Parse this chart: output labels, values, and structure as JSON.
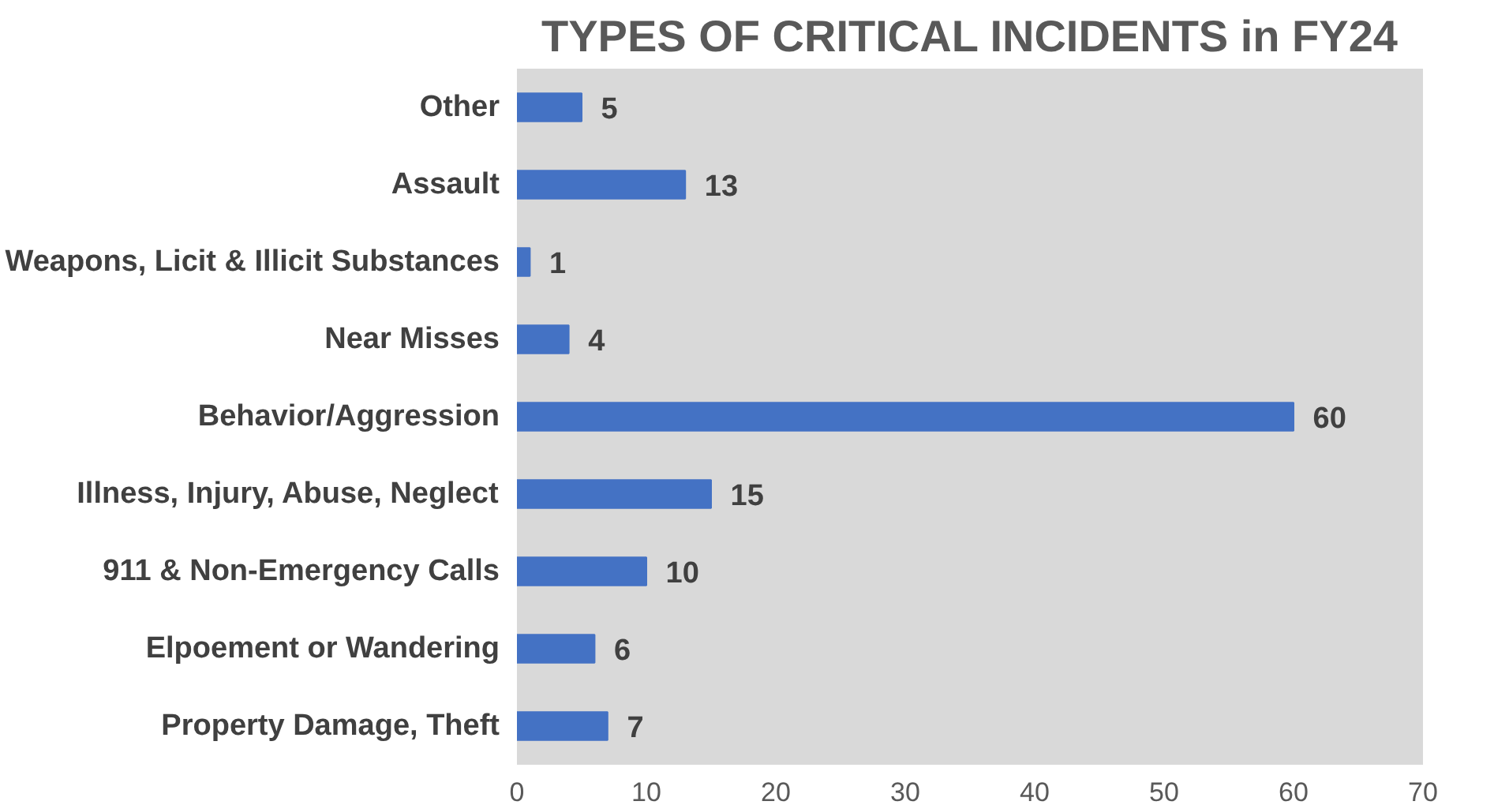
{
  "chart_data": {
    "type": "bar",
    "orientation": "horizontal",
    "title": "TYPES OF CRITICAL INCIDENTS in FY24",
    "categories": [
      "Other",
      "Assault",
      "Weapons, Licit & Illicit Substances",
      "Near Misses",
      "Behavior/Aggression",
      "Illness, Injury, Abuse, Neglect",
      "911 & Non-Emergency Calls",
      "Elpoement or Wandering",
      "Property Damage, Theft"
    ],
    "values": [
      5,
      13,
      1,
      4,
      60,
      15,
      10,
      6,
      7
    ],
    "color": "#4472c4",
    "data_labels": true,
    "grid": false,
    "xlim": [
      0,
      70
    ],
    "xticks": [
      0,
      10,
      20,
      30,
      40,
      50,
      60,
      70
    ]
  }
}
